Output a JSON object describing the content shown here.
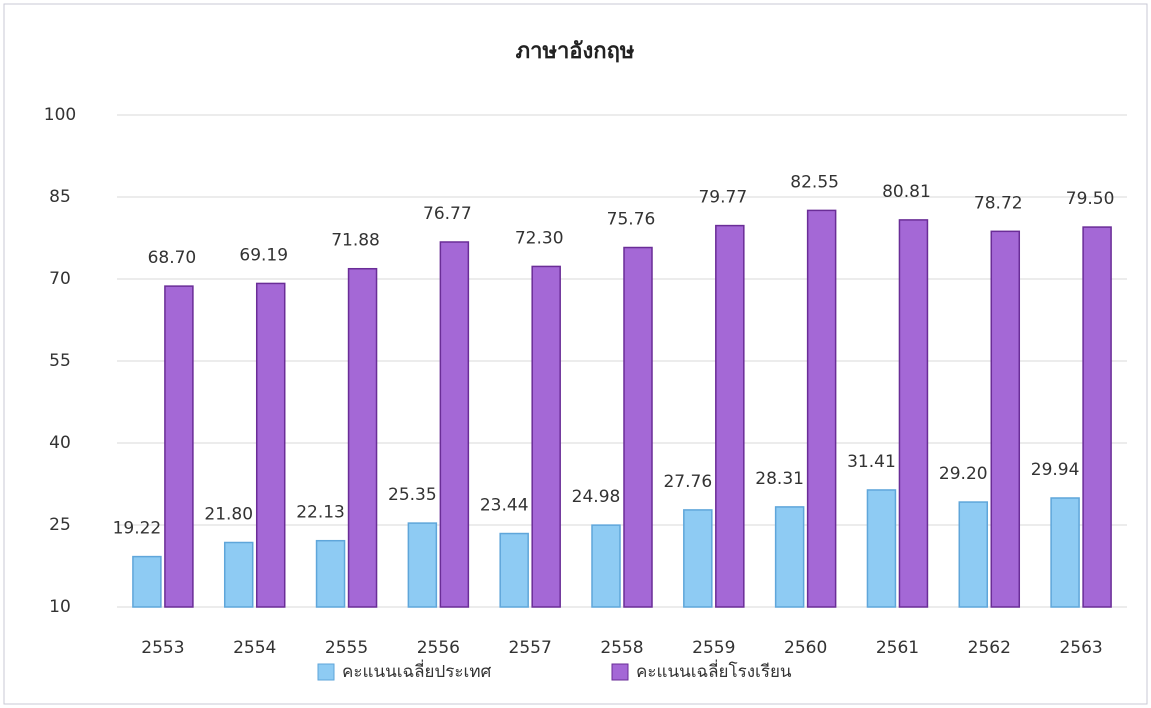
{
  "chart_data": {
    "type": "bar",
    "title": "ภาษาอังกฤษ",
    "categories": [
      "2553",
      "2554",
      "2555",
      "2556",
      "2557",
      "2558",
      "2559",
      "2560",
      "2561",
      "2562",
      "2563"
    ],
    "series": [
      {
        "name": "คะแนนเฉลี่ยประเทศ",
        "color": "#8ecbf3",
        "values": [
          19.22,
          21.8,
          22.13,
          25.35,
          23.44,
          24.98,
          27.76,
          28.31,
          31.41,
          29.2,
          29.94
        ],
        "value_labels": [
          "19.22",
          "21.80",
          "22.13",
          "25.35",
          "23.44",
          "24.98",
          "27.76",
          "28.31",
          "31.41",
          "29.20",
          "29.94"
        ]
      },
      {
        "name": "คะแนนเฉลี่ยโรงเรียน",
        "color": "#a468d6",
        "values": [
          68.7,
          69.19,
          71.88,
          76.77,
          72.3,
          75.76,
          79.77,
          82.55,
          80.81,
          78.72,
          79.5
        ],
        "value_labels": [
          "68.70",
          "69.19",
          "71.88",
          "76.77",
          "72.30",
          "75.76",
          "79.77",
          "82.55",
          "80.81",
          "78.72",
          "79.50"
        ]
      }
    ],
    "ylim": [
      10,
      100
    ],
    "yticks": [
      10,
      25,
      40,
      55,
      70,
      85,
      100
    ],
    "grid": true
  }
}
